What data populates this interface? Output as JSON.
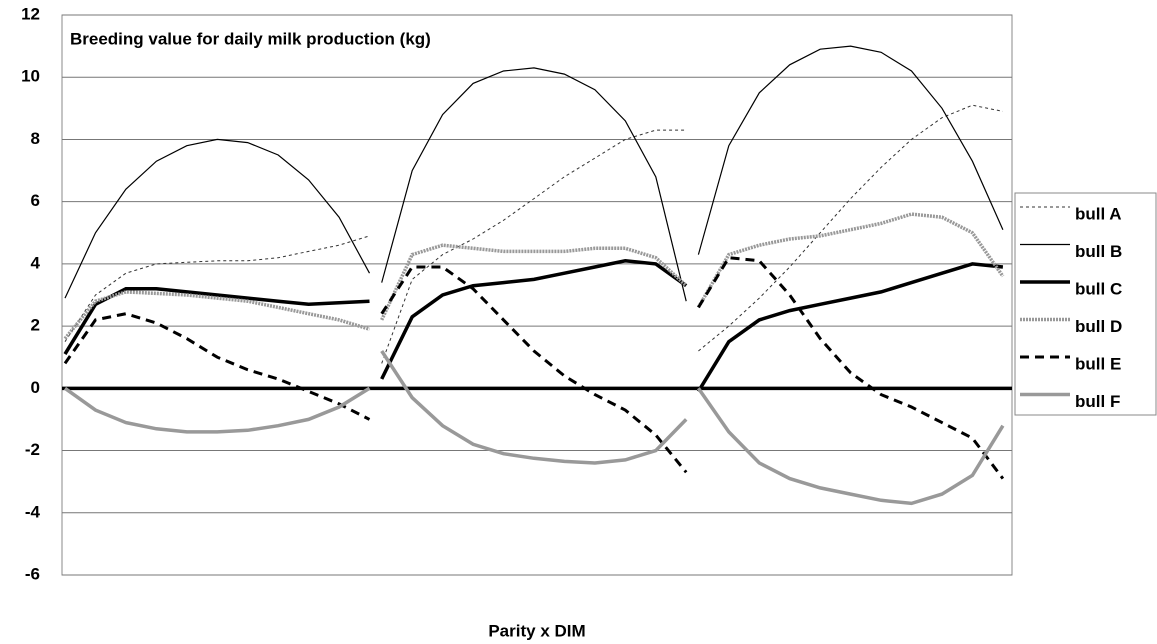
{
  "chart_data": {
    "type": "line",
    "title": "Breeding value for daily milk production (kg)",
    "x_label": "Parity x DIM",
    "x": [
      0,
      10,
      20,
      30,
      40,
      50,
      60,
      70,
      80,
      90,
      100,
      102,
      104,
      114,
      124,
      134,
      144,
      154,
      164,
      174,
      184,
      194,
      204,
      206,
      208,
      218,
      228,
      238,
      248,
      258,
      268,
      278,
      288,
      298,
      308
    ],
    "xlim": [
      -1,
      311
    ],
    "ylim": [
      -6,
      12
    ],
    "yticks": [
      -6,
      -4,
      -2,
      0,
      2,
      4,
      6,
      8,
      10,
      12
    ],
    "grid": true,
    "zero_line": true,
    "legend": "right",
    "series": [
      {
        "name": "bull A",
        "color": "#333333",
        "style": "dotted",
        "values": [
          1.5,
          3.0,
          3.7,
          4.0,
          4.05,
          4.1,
          4.1,
          4.2,
          4.4,
          4.6,
          4.9,
          null,
          0.8,
          3.5,
          4.3,
          4.8,
          5.4,
          6.1,
          6.8,
          7.4,
          8.0,
          8.3,
          8.3,
          null,
          1.2,
          2.0,
          2.9,
          3.9,
          5.0,
          6.1,
          7.1,
          8.0,
          8.7,
          9.1,
          8.9
        ]
      },
      {
        "name": "bull B",
        "color": "#000000",
        "style": "solid",
        "values": [
          2.9,
          5.0,
          6.4,
          7.3,
          7.8,
          8.0,
          7.9,
          7.5,
          6.7,
          5.5,
          3.7,
          null,
          3.4,
          7.0,
          8.8,
          9.8,
          10.2,
          10.3,
          10.1,
          9.6,
          8.6,
          6.8,
          2.8,
          null,
          4.3,
          7.8,
          9.5,
          10.4,
          10.9,
          11.0,
          10.8,
          10.2,
          9.0,
          7.3,
          5.1
        ]
      },
      {
        "name": "bull C",
        "color": "#000000",
        "style": "bold",
        "values": [
          1.1,
          2.7,
          3.2,
          3.2,
          3.1,
          3.0,
          2.9,
          2.8,
          2.7,
          2.75,
          2.8,
          null,
          0.3,
          2.3,
          3.0,
          3.3,
          3.4,
          3.5,
          3.7,
          3.9,
          4.1,
          4.0,
          3.3,
          null,
          -0.1,
          1.5,
          2.2,
          2.5,
          2.7,
          2.9,
          3.1,
          3.4,
          3.7,
          4.0,
          3.9
        ]
      },
      {
        "name": "bull D",
        "color": "#999999",
        "style": "bold-dotted",
        "values": [
          1.6,
          2.8,
          3.1,
          3.05,
          3.0,
          2.9,
          2.8,
          2.6,
          2.4,
          2.2,
          1.9,
          null,
          2.2,
          4.3,
          4.6,
          4.5,
          4.4,
          4.4,
          4.4,
          4.5,
          4.5,
          4.2,
          3.3,
          null,
          2.6,
          4.3,
          4.6,
          4.8,
          4.9,
          5.1,
          5.3,
          5.6,
          5.5,
          5.0,
          3.6
        ]
      },
      {
        "name": "bull E",
        "color": "#000000",
        "style": "bold-dashed",
        "values": [
          0.8,
          2.2,
          2.4,
          2.1,
          1.6,
          1.0,
          0.6,
          0.3,
          -0.1,
          -0.5,
          -1.0,
          null,
          2.4,
          3.9,
          3.9,
          3.2,
          2.2,
          1.2,
          0.4,
          -0.2,
          -0.7,
          -1.5,
          -2.7,
          null,
          2.6,
          4.2,
          4.1,
          3.0,
          1.6,
          0.5,
          -0.2,
          -0.6,
          -1.1,
          -1.6,
          -2.9
        ]
      },
      {
        "name": "bull F",
        "color": "#999999",
        "style": "bold",
        "values": [
          0,
          -0.7,
          -1.1,
          -1.3,
          -1.4,
          -1.4,
          -1.35,
          -1.2,
          -1.0,
          -0.6,
          0,
          null,
          1.2,
          -0.3,
          -1.2,
          -1.8,
          -2.1,
          -2.25,
          -2.35,
          -2.4,
          -2.3,
          -2.0,
          -1.0,
          null,
          0,
          -1.4,
          -2.4,
          -2.9,
          -3.2,
          -3.4,
          -3.6,
          -3.7,
          -3.4,
          -2.8,
          -1.2
        ]
      }
    ]
  }
}
